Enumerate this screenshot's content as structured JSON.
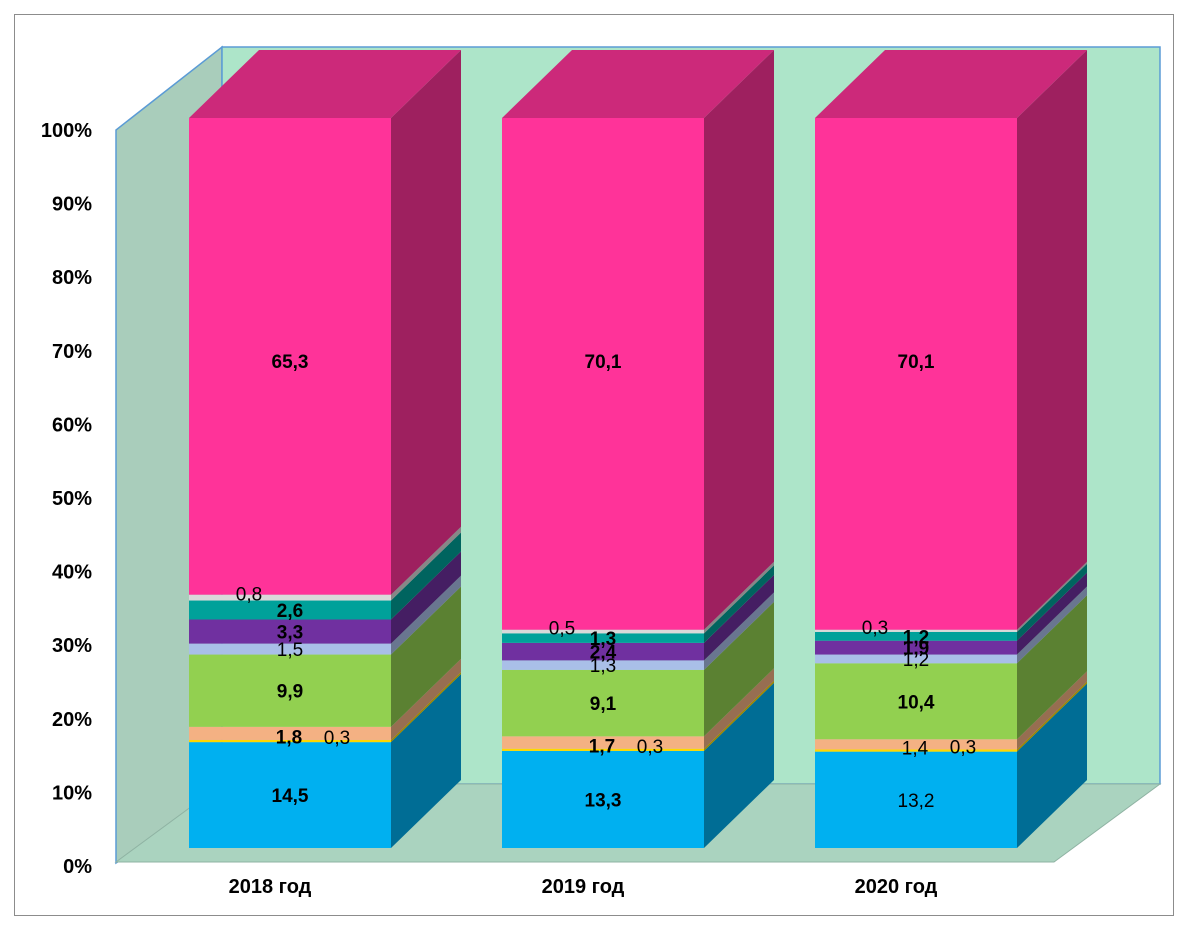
{
  "chart_data": {
    "type": "bar",
    "stacked": true,
    "normalized_100": true,
    "three_d": true,
    "categories": [
      "2018 год",
      "2019 год",
      "2020 год"
    ],
    "y_ticks": [
      "0%",
      "10%",
      "20%",
      "30%",
      "40%",
      "50%",
      "60%",
      "70%",
      "80%",
      "90%",
      "100%"
    ],
    "ylim": [
      0,
      100
    ],
    "grid": false,
    "legend": "none",
    "colors": {
      "floor": "#aad3bf",
      "back_wall": "#ade5c9",
      "side_wall": "#a9cdbb",
      "wall_edge": "#5b9bd5"
    },
    "series": [
      {
        "color": "#00b0f0",
        "values": [
          14.5,
          13.3,
          13.2
        ],
        "labels": [
          "14,5",
          "13,3",
          "13,2"
        ],
        "bold": [
          true,
          true,
          false
        ]
      },
      {
        "color": "#ffd700",
        "values": [
          0.3,
          0.3,
          0.3
        ],
        "labels": [
          "0,3",
          "0,3",
          "0,3"
        ],
        "bold": [
          false,
          false,
          false
        ]
      },
      {
        "color": "#f4b183",
        "values": [
          1.8,
          1.7,
          1.4
        ],
        "labels": [
          "1,8",
          "1,7",
          "1,4"
        ],
        "bold": [
          true,
          true,
          false
        ]
      },
      {
        "color": "#92d050",
        "values": [
          9.9,
          9.1,
          10.4
        ],
        "labels": [
          "9,9",
          "9,1",
          "10,4"
        ],
        "bold": [
          true,
          true,
          true
        ]
      },
      {
        "color": "#a9bfe8",
        "values": [
          1.5,
          1.3,
          1.2
        ],
        "labels": [
          "1,5",
          "1,3",
          "1,2"
        ],
        "bold": [
          false,
          false,
          false
        ]
      },
      {
        "color": "#7030a0",
        "values": [
          3.3,
          2.4,
          1.9
        ],
        "labels": [
          "3,3",
          "2,4",
          "1,9"
        ],
        "bold": [
          true,
          true,
          true
        ]
      },
      {
        "color": "#00a19a",
        "values": [
          2.6,
          1.3,
          1.2
        ],
        "labels": [
          "2,6",
          "1,3",
          "1,2"
        ],
        "bold": [
          true,
          true,
          true
        ]
      },
      {
        "color": "#d9d9d9",
        "values": [
          0.8,
          0.5,
          0.3
        ],
        "labels": [
          "0,8",
          "0,5",
          "0,3"
        ],
        "bold": [
          false,
          false,
          false
        ]
      },
      {
        "color": "#ff3399",
        "values": [
          65.3,
          70.1,
          70.1
        ],
        "labels": [
          "65,3",
          "70,1",
          "70,1"
        ],
        "bold": [
          true,
          true,
          true
        ]
      }
    ]
  }
}
